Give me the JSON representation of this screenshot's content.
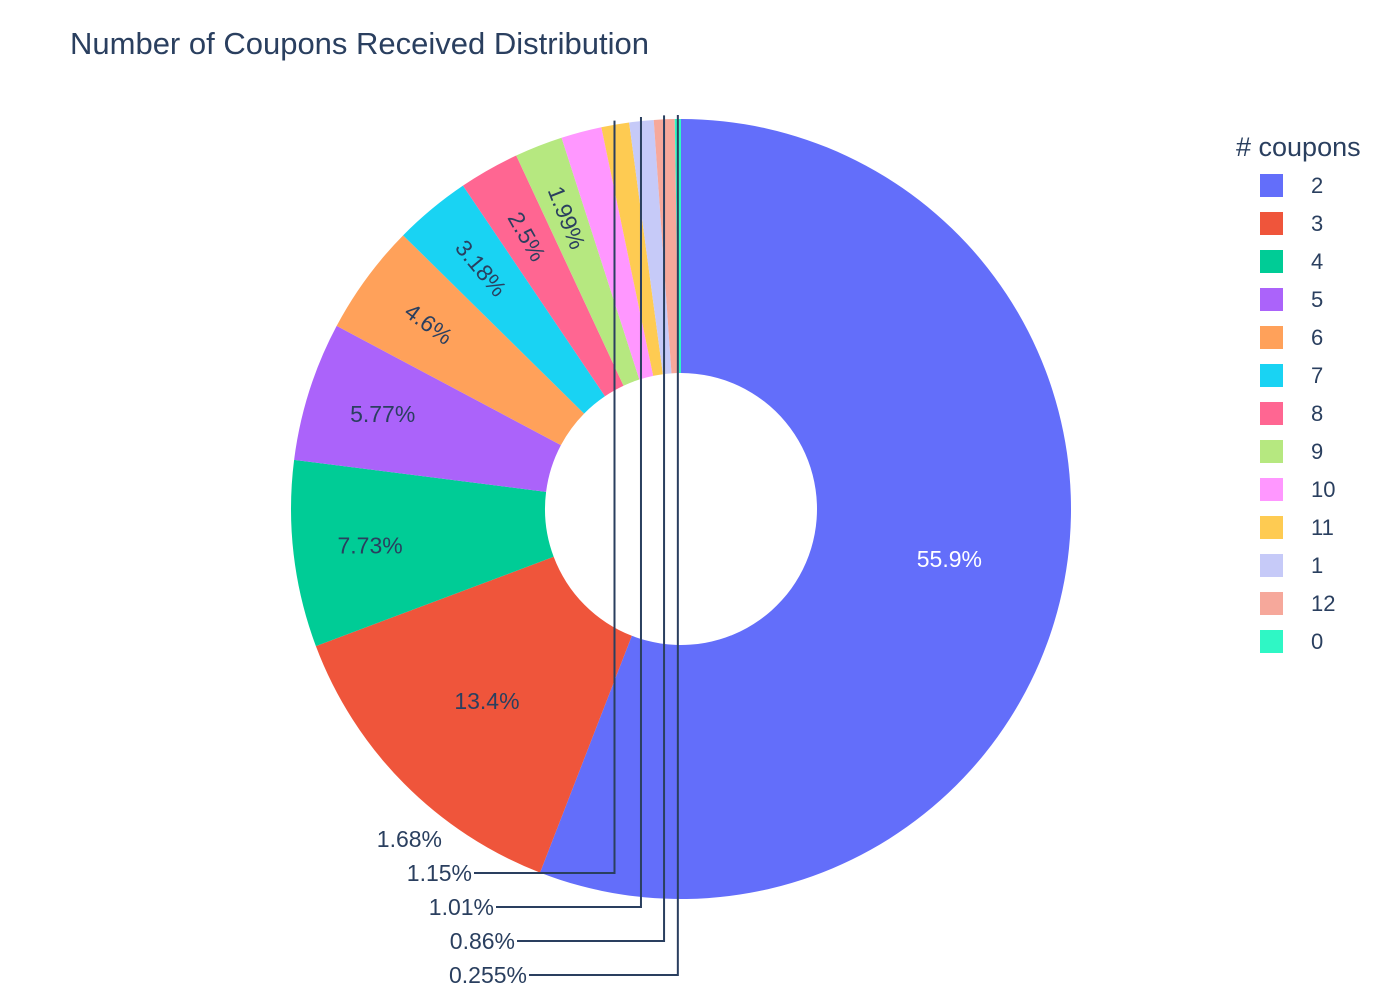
{
  "chart_data": {
    "type": "pie",
    "hole": true,
    "title": "Number of Coupons Received Distribution",
    "legend_title": "# coupons",
    "legend_position": "right",
    "direction": "clockwise",
    "sort": "descending",
    "slices": [
      {
        "label": "2",
        "value": 55.9,
        "text": "55.9%",
        "color": "#636efa"
      },
      {
        "label": "3",
        "value": 13.4,
        "text": "13.4%",
        "color": "#ef553b"
      },
      {
        "label": "4",
        "value": 7.73,
        "text": "7.73%",
        "color": "#00cc96"
      },
      {
        "label": "5",
        "value": 5.77,
        "text": "5.77%",
        "color": "#ab63fa"
      },
      {
        "label": "6",
        "value": 4.6,
        "text": "4.6%",
        "color": "#ffa15a"
      },
      {
        "label": "7",
        "value": 3.18,
        "text": "3.18%",
        "color": "#19d3f3"
      },
      {
        "label": "8",
        "value": 2.5,
        "text": "2.5%",
        "color": "#ff6692"
      },
      {
        "label": "9",
        "value": 1.99,
        "text": "1.99%",
        "color": "#b6e880"
      },
      {
        "label": "10",
        "value": 1.68,
        "text": "1.68%",
        "color": "#ff97ff"
      },
      {
        "label": "11",
        "value": 1.15,
        "text": "1.15%",
        "color": "#fecb52"
      },
      {
        "label": "1",
        "value": 1.01,
        "text": "1.01%",
        "color": "#c6caf8"
      },
      {
        "label": "12",
        "value": 0.86,
        "text": "0.86%",
        "color": "#f6a89b"
      },
      {
        "label": "0",
        "value": 0.255,
        "text": "0.255%",
        "color": "#2ff7c5"
      }
    ]
  }
}
